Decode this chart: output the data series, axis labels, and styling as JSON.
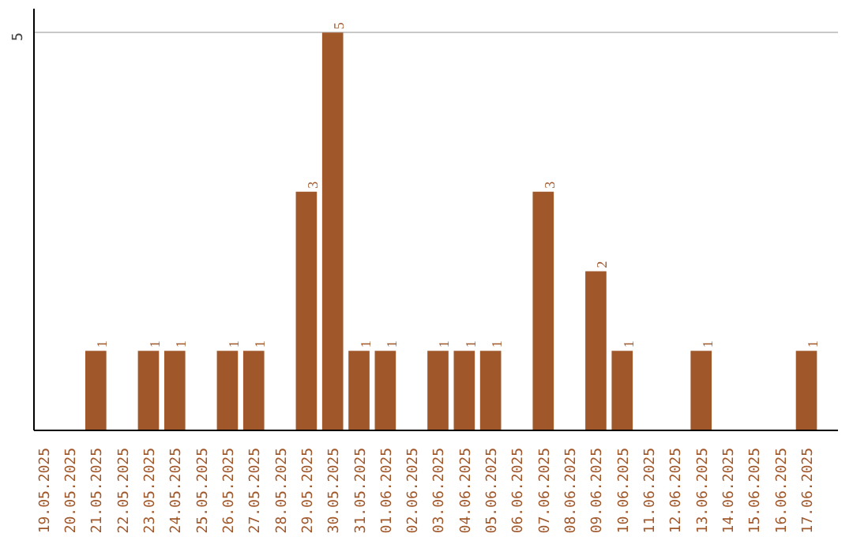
{
  "chart_data": {
    "type": "bar",
    "categories": [
      "19.05.2025",
      "20.05.2025",
      "21.05.2025",
      "22.05.2025",
      "23.05.2025",
      "24.05.2025",
      "25.05.2025",
      "26.05.2025",
      "27.05.2025",
      "28.05.2025",
      "29.05.2025",
      "30.05.2025",
      "31.05.2025",
      "01.06.2025",
      "02.06.2025",
      "03.06.2025",
      "04.06.2025",
      "05.06.2025",
      "06.06.2025",
      "07.06.2025",
      "08.06.2025",
      "09.06.2025",
      "10.06.2025",
      "11.06.2025",
      "12.06.2025",
      "13.06.2025",
      "14.06.2025",
      "15.06.2025",
      "16.06.2025",
      "17.06.2025"
    ],
    "values": [
      0,
      0,
      1,
      0,
      1,
      1,
      0,
      1,
      1,
      0,
      3,
      5,
      1,
      1,
      0,
      1,
      1,
      1,
      0,
      3,
      0,
      2,
      1,
      0,
      0,
      1,
      0,
      0,
      0,
      1
    ],
    "value_labels": [
      null,
      null,
      "1",
      null,
      "1",
      "1",
      null,
      "1",
      "1",
      null,
      "3",
      "5",
      "1",
      "1",
      null,
      "1",
      "1",
      "1",
      null,
      "3",
      null,
      "2",
      "1",
      null,
      null,
      "1",
      null,
      null,
      null,
      "1"
    ],
    "color": "#a0572a",
    "ylim": [
      0,
      5.3
    ],
    "yticks": [
      5
    ],
    "grid": "y"
  }
}
